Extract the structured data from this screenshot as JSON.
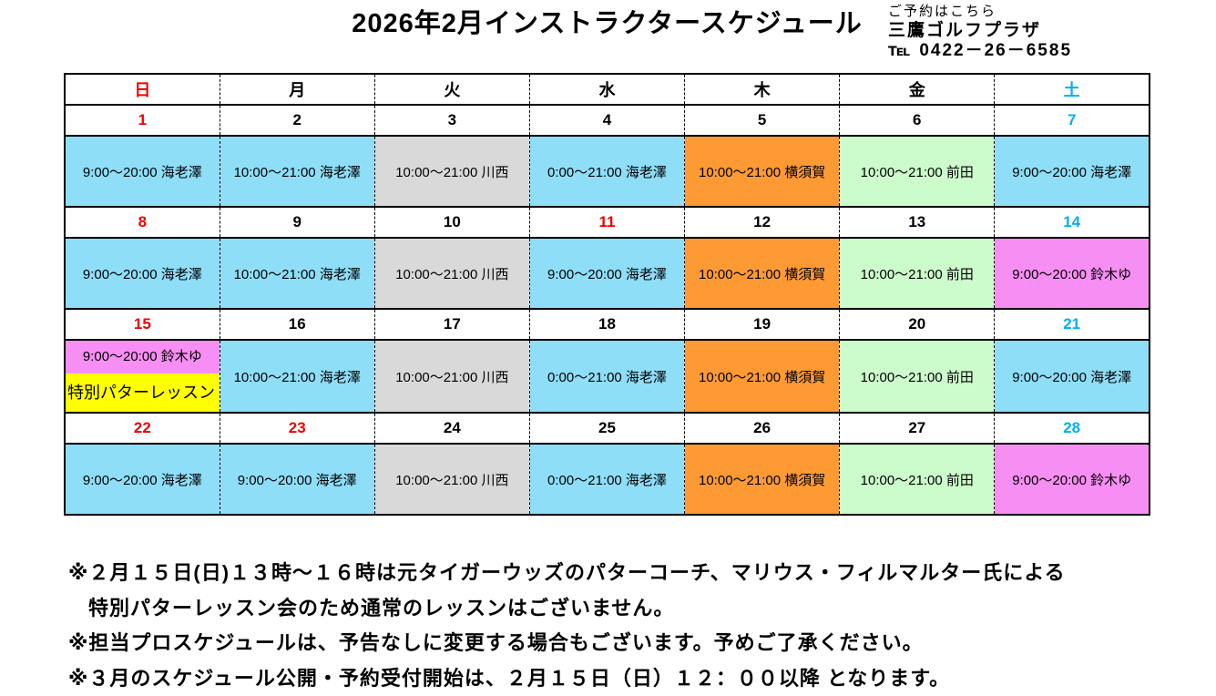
{
  "title": "2026年2月インストラクタースケジュール",
  "contact": {
    "reservation_label": "ご予約はこちら",
    "shop_name": "三鷹ゴルフプラザ",
    "tel_symbol": "℡",
    "tel_number": "0422－26－6585"
  },
  "colors": {
    "text": {
      "red": "#f00000",
      "cyan": "#00b0f0",
      "black": "#000000"
    },
    "bg": {
      "blue": "#8edef8",
      "gray": "#d9d9d9",
      "orange": "#fd9a34",
      "green": "#ccfbcc",
      "magenta": "#f78ef3",
      "yellow": "#ffff00",
      "white": "#ffffff"
    }
  },
  "calendar": {
    "day_headers": [
      {
        "label": "日",
        "color": "red"
      },
      {
        "label": "月",
        "color": "black"
      },
      {
        "label": "火",
        "color": "black"
      },
      {
        "label": "水",
        "color": "black"
      },
      {
        "label": "木",
        "color": "black"
      },
      {
        "label": "金",
        "color": "black"
      },
      {
        "label": "土",
        "color": "cyan"
      }
    ],
    "weeks": [
      {
        "dates": [
          {
            "day": "1",
            "color": "red"
          },
          {
            "day": "2",
            "color": "black"
          },
          {
            "day": "3",
            "color": "black"
          },
          {
            "day": "4",
            "color": "black"
          },
          {
            "day": "5",
            "color": "black"
          },
          {
            "day": "6",
            "color": "black"
          },
          {
            "day": "7",
            "color": "cyan"
          }
        ],
        "cells": [
          {
            "text": "9:00～20:00 海老澤",
            "bg": "blue"
          },
          {
            "text": "10:00～21:00 海老澤",
            "bg": "blue"
          },
          {
            "text": "10:00～21:00 川西",
            "bg": "gray"
          },
          {
            "text": "0:00～21:00 海老澤",
            "bg": "blue"
          },
          {
            "text": "10:00～21:00 横須賀",
            "bg": "orange"
          },
          {
            "text": "10:00～21:00 前田",
            "bg": "green"
          },
          {
            "text": "9:00～20:00 海老澤",
            "bg": "blue"
          }
        ]
      },
      {
        "dates": [
          {
            "day": "8",
            "color": "red"
          },
          {
            "day": "9",
            "color": "black"
          },
          {
            "day": "10",
            "color": "black"
          },
          {
            "day": "11",
            "color": "red"
          },
          {
            "day": "12",
            "color": "black"
          },
          {
            "day": "13",
            "color": "black"
          },
          {
            "day": "14",
            "color": "cyan"
          }
        ],
        "cells": [
          {
            "text": "9:00～20:00 海老澤",
            "bg": "blue"
          },
          {
            "text": "10:00～21:00 海老澤",
            "bg": "blue"
          },
          {
            "text": "10:00～21:00 川西",
            "bg": "gray"
          },
          {
            "text": "9:00～20:00 海老澤",
            "bg": "blue"
          },
          {
            "text": "10:00～21:00 横須賀",
            "bg": "orange"
          },
          {
            "text": "10:00～21:00 前田",
            "bg": "green"
          },
          {
            "text": "9:00～20:00 鈴木ゆ",
            "bg": "magenta"
          }
        ]
      },
      {
        "dates": [
          {
            "day": "15",
            "color": "red"
          },
          {
            "day": "16",
            "color": "black"
          },
          {
            "day": "17",
            "color": "black"
          },
          {
            "day": "18",
            "color": "black"
          },
          {
            "day": "19",
            "color": "black"
          },
          {
            "day": "20",
            "color": "black"
          },
          {
            "day": "21",
            "color": "cyan"
          }
        ],
        "cells": [
          {
            "split": true,
            "top": {
              "text": "9:00～20:00 鈴木ゆ",
              "bg": "magenta"
            },
            "bottom": {
              "text": "特別パターレッスン",
              "bg": "yellow"
            }
          },
          {
            "text": "10:00～21:00 海老澤",
            "bg": "blue"
          },
          {
            "text": "10:00～21:00 川西",
            "bg": "gray"
          },
          {
            "text": "0:00～21:00 海老澤",
            "bg": "blue"
          },
          {
            "text": "10:00～21:00 横須賀",
            "bg": "orange"
          },
          {
            "text": "10:00～21:00 前田",
            "bg": "green"
          },
          {
            "text": "9:00～20:00 海老澤",
            "bg": "blue"
          }
        ]
      },
      {
        "dates": [
          {
            "day": "22",
            "color": "red"
          },
          {
            "day": "23",
            "color": "red"
          },
          {
            "day": "24",
            "color": "black"
          },
          {
            "day": "25",
            "color": "black"
          },
          {
            "day": "26",
            "color": "black"
          },
          {
            "day": "27",
            "color": "black"
          },
          {
            "day": "28",
            "color": "cyan"
          }
        ],
        "cells": [
          {
            "text": "9:00～20:00 海老澤",
            "bg": "blue"
          },
          {
            "text": "9:00～20:00 海老澤",
            "bg": "blue"
          },
          {
            "text": "10:00～21:00 川西",
            "bg": "gray"
          },
          {
            "text": "0:00～21:00 海老澤",
            "bg": "blue"
          },
          {
            "text": "10:00～21:00 横須賀",
            "bg": "orange"
          },
          {
            "text": "10:00～21:00 前田",
            "bg": "green"
          },
          {
            "text": "9:00～20:00 鈴木ゆ",
            "bg": "magenta"
          }
        ]
      }
    ]
  },
  "notes": [
    "※２月１５日(日)１３時～１６時は元タイガーウッズのパターコーチ、マリウス・フィルマルター氏による",
    "特別パターレッスン会のため通常のレッスンはございません。",
    "※担当プロスケジュールは、予告なしに変更する場合もございます。予めご了承ください。",
    "※３月のスケジュール公開・予約受付開始は、２月１５日（日）１２：００以降 となります。"
  ]
}
